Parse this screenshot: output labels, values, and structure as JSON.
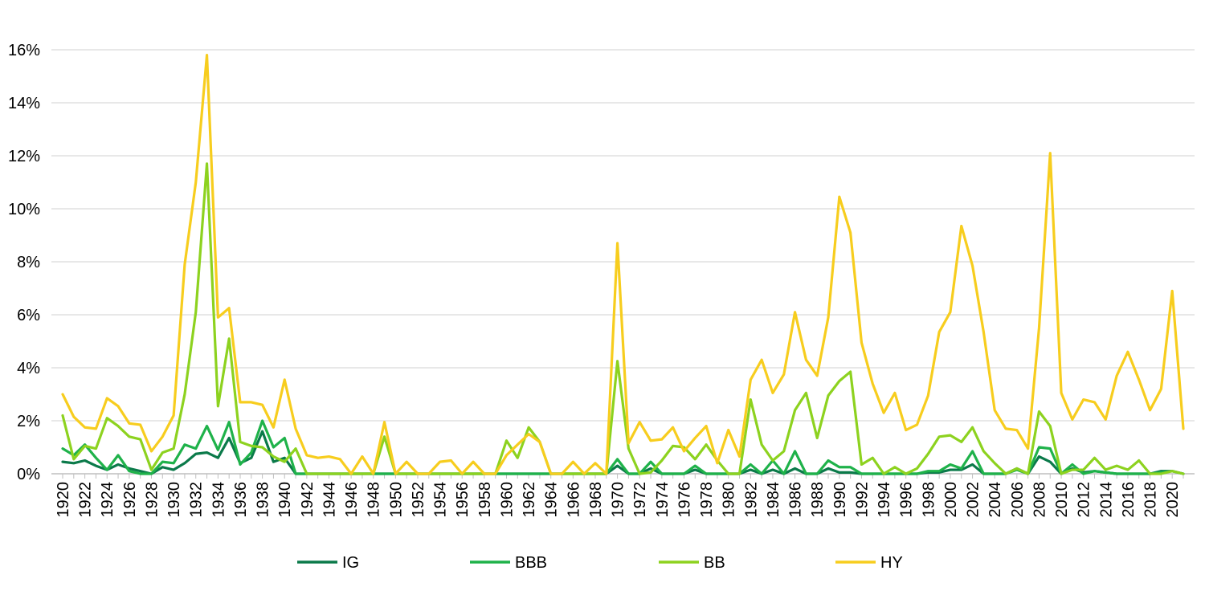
{
  "chart_data": {
    "type": "line",
    "x": [
      1920,
      1921,
      1922,
      1923,
      1924,
      1925,
      1926,
      1927,
      1928,
      1929,
      1930,
      1931,
      1932,
      1933,
      1934,
      1935,
      1936,
      1937,
      1938,
      1939,
      1940,
      1941,
      1942,
      1943,
      1944,
      1945,
      1946,
      1947,
      1948,
      1949,
      1950,
      1951,
      1952,
      1953,
      1954,
      1955,
      1956,
      1957,
      1958,
      1959,
      1960,
      1961,
      1962,
      1963,
      1964,
      1965,
      1966,
      1967,
      1968,
      1969,
      1970,
      1971,
      1972,
      1973,
      1974,
      1975,
      1976,
      1977,
      1978,
      1979,
      1980,
      1981,
      1982,
      1983,
      1984,
      1985,
      1986,
      1987,
      1988,
      1989,
      1990,
      1991,
      1992,
      1993,
      1994,
      1995,
      1996,
      1997,
      1998,
      1999,
      2000,
      2001,
      2002,
      2003,
      2004,
      2005,
      2006,
      2007,
      2008,
      2009,
      2010,
      2011,
      2012,
      2013,
      2014,
      2015,
      2016,
      2017,
      2018,
      2019,
      2020,
      2021
    ],
    "x_tick_labels": [
      "1920",
      "1922",
      "1924",
      "1926",
      "1928",
      "1930",
      "1932",
      "1934",
      "1936",
      "1938",
      "1940",
      "1942",
      "1944",
      "1946",
      "1948",
      "1950",
      "1952",
      "1954",
      "1956",
      "1958",
      "1960",
      "1962",
      "1964",
      "1966",
      "1968",
      "1970",
      "1972",
      "1974",
      "1976",
      "1978",
      "1980",
      "1982",
      "1984",
      "1986",
      "1988",
      "1990",
      "1992",
      "1994",
      "1996",
      "1998",
      "2000",
      "2002",
      "2004",
      "2006",
      "2008",
      "2010",
      "2012",
      "2014",
      "2016",
      "2018",
      "2020"
    ],
    "y_tick_labels": [
      "0%",
      "2%",
      "4%",
      "6%",
      "8%",
      "10%",
      "12%",
      "14%",
      "16%"
    ],
    "ylim": [
      0,
      16
    ],
    "y_unit": "%",
    "grid": "horizontal",
    "legend_position": "bottom",
    "series": [
      {
        "name": "IG",
        "color": "#0b7a4a",
        "values": [
          0.45,
          0.4,
          0.5,
          0.3,
          0.15,
          0.35,
          0.2,
          0.1,
          0.0,
          0.25,
          0.15,
          0.4,
          0.75,
          0.8,
          0.6,
          1.35,
          0.4,
          0.6,
          1.6,
          0.45,
          0.6,
          0.0,
          0.0,
          0.0,
          0.0,
          0.0,
          0.0,
          0.0,
          0.0,
          0.0,
          0.0,
          0.0,
          0.0,
          0.0,
          0.0,
          0.0,
          0.0,
          0.0,
          0.0,
          0.0,
          0.0,
          0.0,
          0.0,
          0.0,
          0.0,
          0.0,
          0.0,
          0.0,
          0.0,
          0.0,
          0.3,
          0.0,
          0.0,
          0.2,
          0.0,
          0.0,
          0.0,
          0.15,
          0.0,
          0.0,
          0.0,
          0.0,
          0.15,
          0.0,
          0.15,
          0.0,
          0.2,
          0.0,
          0.0,
          0.2,
          0.05,
          0.05,
          0.0,
          0.0,
          0.0,
          0.0,
          0.0,
          0.0,
          0.05,
          0.05,
          0.15,
          0.15,
          0.35,
          0.0,
          0.0,
          0.0,
          0.2,
          0.0,
          0.65,
          0.45,
          0.0,
          0.2,
          0.05,
          0.1,
          0.05,
          0.0,
          0.0,
          0.0,
          0.0,
          0.1,
          0.1,
          0.0
        ]
      },
      {
        "name": "BBB",
        "color": "#1fb24a",
        "values": [
          0.95,
          0.7,
          1.1,
          0.6,
          0.15,
          0.7,
          0.1,
          0.0,
          0.0,
          0.45,
          0.4,
          1.1,
          0.95,
          1.8,
          0.9,
          1.95,
          0.35,
          0.8,
          2.0,
          1.0,
          1.35,
          0.0,
          0.0,
          0.0,
          0.0,
          0.0,
          0.0,
          0.0,
          0.0,
          0.0,
          0.0,
          0.0,
          0.0,
          0.0,
          0.0,
          0.0,
          0.0,
          0.0,
          0.0,
          0.0,
          0.0,
          0.0,
          0.0,
          0.0,
          0.0,
          0.0,
          0.0,
          0.0,
          0.0,
          0.0,
          0.55,
          0.0,
          0.0,
          0.45,
          0.0,
          0.0,
          0.0,
          0.3,
          0.0,
          0.0,
          0.0,
          0.0,
          0.35,
          0.0,
          0.5,
          0.0,
          0.85,
          0.0,
          0.0,
          0.5,
          0.25,
          0.25,
          0.0,
          0.0,
          0.0,
          0.0,
          0.0,
          0.0,
          0.1,
          0.1,
          0.35,
          0.2,
          0.85,
          0.0,
          0.0,
          0.0,
          0.15,
          0.0,
          1.0,
          0.95,
          0.0,
          0.35,
          0.0,
          0.1,
          0.05,
          0.0,
          0.0,
          0.0,
          0.0,
          0.05,
          0.1,
          0.0
        ]
      },
      {
        "name": "BB",
        "color": "#8dd21f",
        "values": [
          2.2,
          0.55,
          1.05,
          0.95,
          2.1,
          1.8,
          1.4,
          1.3,
          0.15,
          0.8,
          0.95,
          3.0,
          6.1,
          11.7,
          2.55,
          5.1,
          1.2,
          1.05,
          1.0,
          0.65,
          0.45,
          0.95,
          0.0,
          0.0,
          0.0,
          0.0,
          0.0,
          0.0,
          0.0,
          1.4,
          0.0,
          0.0,
          0.0,
          0.0,
          0.0,
          0.0,
          0.0,
          0.0,
          0.0,
          0.0,
          1.25,
          0.6,
          1.75,
          1.2,
          0.0,
          0.0,
          0.0,
          0.0,
          0.0,
          0.0,
          4.25,
          0.95,
          0.0,
          0.05,
          0.5,
          1.05,
          1.0,
          0.55,
          1.1,
          0.5,
          0.0,
          0.0,
          2.8,
          1.1,
          0.5,
          0.85,
          2.4,
          3.05,
          1.35,
          2.95,
          3.5,
          3.85,
          0.35,
          0.6,
          0.0,
          0.25,
          0.0,
          0.2,
          0.75,
          1.4,
          1.45,
          1.2,
          1.75,
          0.85,
          0.4,
          0.0,
          0.2,
          0.0,
          2.35,
          1.8,
          0.0,
          0.15,
          0.15,
          0.6,
          0.15,
          0.3,
          0.15,
          0.5,
          0.0,
          0.0,
          0.1,
          0.0
        ]
      },
      {
        "name": "HY",
        "color": "#f7cd1e",
        "values": [
          3.0,
          2.15,
          1.75,
          1.7,
          2.85,
          2.55,
          1.9,
          1.85,
          0.85,
          1.4,
          2.2,
          7.9,
          11.0,
          15.8,
          5.9,
          6.25,
          2.7,
          2.7,
          2.6,
          1.75,
          3.55,
          1.7,
          0.7,
          0.6,
          0.65,
          0.55,
          0.0,
          0.65,
          0.0,
          1.95,
          0.0,
          0.45,
          0.0,
          0.0,
          0.45,
          0.5,
          0.0,
          0.45,
          0.0,
          0.0,
          0.7,
          1.1,
          1.5,
          1.2,
          0.0,
          0.0,
          0.45,
          0.0,
          0.4,
          0.0,
          8.7,
          1.15,
          1.95,
          1.25,
          1.3,
          1.75,
          0.85,
          1.35,
          1.8,
          0.4,
          1.65,
          0.65,
          3.55,
          4.3,
          3.05,
          3.75,
          6.1,
          4.3,
          3.7,
          5.9,
          10.45,
          9.1,
          4.95,
          3.4,
          2.3,
          3.05,
          1.65,
          1.85,
          2.95,
          5.35,
          6.1,
          9.35,
          7.85,
          5.35,
          2.4,
          1.7,
          1.65,
          0.95,
          5.5,
          12.1,
          3.05,
          2.05,
          2.8,
          2.7,
          2.05,
          3.7,
          4.6,
          3.55,
          2.4,
          3.2,
          6.9,
          1.7
        ]
      }
    ]
  }
}
